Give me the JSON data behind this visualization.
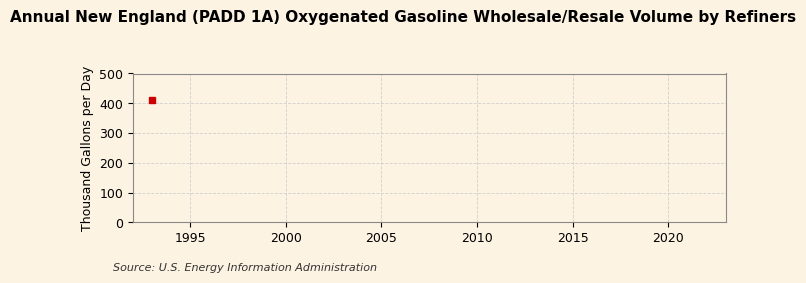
{
  "title": "Annual New England (PADD 1A) Oxygenated Gasoline Wholesale/Resale Volume by Refiners",
  "ylabel": "Thousand Gallons per Day",
  "source": "Source: U.S. Energy Information Administration",
  "background_color": "#fdf3e3",
  "plot_bg_color": "#fdf3e3",
  "grid_color": "#cccccc",
  "data_x": [
    1993
  ],
  "data_y": [
    410
  ],
  "marker_color": "#cc0000",
  "xlim": [
    1992,
    2023
  ],
  "ylim": [
    0,
    500
  ],
  "xticks": [
    1995,
    2000,
    2005,
    2010,
    2015,
    2020
  ],
  "yticks": [
    0,
    100,
    200,
    300,
    400,
    500
  ],
  "title_fontsize": 11,
  "label_fontsize": 9,
  "tick_fontsize": 9,
  "source_fontsize": 8
}
